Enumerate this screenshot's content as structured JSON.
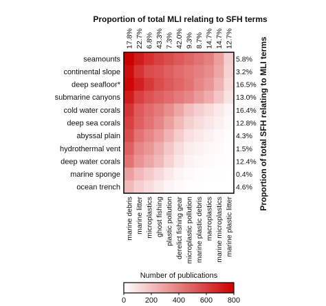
{
  "chart_data": {
    "type": "heatmap",
    "top_title": "Proportion of total MLI relating to SFH terms",
    "right_title": "Proportion of total SFH relating to MLI terms",
    "columns": [
      "marine debris",
      "marine litter",
      "microplastics",
      "ghost fishing",
      "plastic pollution",
      "derelict fishing gear",
      "microplastic pollution",
      "marine plastic debris",
      "macroplastics",
      "marine microplastics",
      "marine plastic litter"
    ],
    "rows": [
      "seamounts",
      "continental slope",
      "deep seafloor*",
      "submarine canyons",
      "cold water corals",
      "deep sea corals",
      "abyssal plain",
      "hydrothermal vent",
      "deep water corals",
      "marine sponge",
      "ocean trench"
    ],
    "column_percentages": [
      "17.8%",
      "22.7%",
      "6.8%",
      "43.3%",
      "7.3%",
      "42.0%",
      "9.3%",
      "8.7%",
      "14.7%",
      "14.7%",
      "12.7%"
    ],
    "row_percentages": [
      "5.8%",
      "3.2%",
      "16.5%",
      "13.0%",
      "16.4%",
      "12.8%",
      "4.3%",
      "1.5%",
      "12.4%",
      "0.4%",
      "4.6%"
    ],
    "values": [
      [
        800,
        720,
        650,
        600,
        560,
        520,
        480,
        440,
        400,
        300,
        150
      ],
      [
        760,
        640,
        560,
        540,
        500,
        460,
        430,
        400,
        360,
        280,
        140
      ],
      [
        780,
        700,
        620,
        560,
        520,
        480,
        440,
        380,
        330,
        240,
        120
      ],
      [
        720,
        600,
        540,
        500,
        460,
        420,
        380,
        320,
        260,
        180,
        90
      ],
      [
        640,
        520,
        460,
        420,
        360,
        280,
        200,
        150,
        110,
        70,
        30
      ],
      [
        600,
        500,
        440,
        380,
        300,
        220,
        150,
        110,
        80,
        50,
        20
      ],
      [
        560,
        440,
        380,
        320,
        240,
        160,
        100,
        70,
        45,
        25,
        10
      ],
      [
        500,
        380,
        330,
        260,
        180,
        110,
        60,
        40,
        25,
        15,
        5
      ],
      [
        440,
        340,
        280,
        220,
        140,
        80,
        40,
        25,
        15,
        10,
        5
      ],
      [
        300,
        220,
        170,
        120,
        70,
        35,
        15,
        10,
        5,
        3,
        0
      ],
      [
        220,
        150,
        110,
        70,
        35,
        15,
        5,
        3,
        0,
        0,
        0
      ]
    ],
    "colorbar": {
      "label": "Number of publications",
      "min": 0,
      "max": 800,
      "ticks": [
        "0",
        "200",
        "400",
        "600",
        "800"
      ],
      "colors": [
        "#ffffff",
        "#cc0000"
      ]
    }
  }
}
